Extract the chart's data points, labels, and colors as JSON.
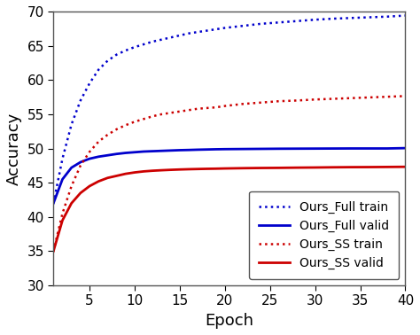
{
  "title": "",
  "xlabel": "Epoch",
  "ylabel": "Accuracy",
  "xlim": [
    1,
    40
  ],
  "ylim": [
    30,
    70
  ],
  "xticks": [
    5,
    10,
    15,
    20,
    25,
    30,
    35,
    40
  ],
  "yticks": [
    30,
    35,
    40,
    45,
    50,
    55,
    60,
    65,
    70
  ],
  "series": {
    "ours_full_train": {
      "color": "#0000cc",
      "linestyle": "dotted",
      "linewidth": 1.8,
      "label": "Ours_Full train",
      "x": [
        1,
        2,
        3,
        4,
        5,
        6,
        7,
        8,
        9,
        10,
        11,
        12,
        13,
        14,
        15,
        16,
        17,
        18,
        19,
        20,
        22,
        24,
        26,
        28,
        30,
        32,
        34,
        36,
        38,
        40
      ],
      "y": [
        42.0,
        48.5,
        53.5,
        57.0,
        59.5,
        61.5,
        62.8,
        63.7,
        64.3,
        64.8,
        65.2,
        65.6,
        65.9,
        66.2,
        66.5,
        66.8,
        67.0,
        67.2,
        67.4,
        67.6,
        67.9,
        68.2,
        68.4,
        68.6,
        68.8,
        68.95,
        69.05,
        69.15,
        69.25,
        69.4
      ]
    },
    "ours_full_valid": {
      "color": "#0000cc",
      "linestyle": "solid",
      "linewidth": 2.0,
      "label": "Ours_Full valid",
      "x": [
        1,
        2,
        3,
        4,
        5,
        6,
        7,
        8,
        9,
        10,
        11,
        12,
        13,
        14,
        15,
        16,
        17,
        18,
        19,
        20,
        22,
        24,
        26,
        28,
        30,
        32,
        34,
        36,
        38,
        40
      ],
      "y": [
        42.0,
        45.5,
        47.2,
        48.0,
        48.5,
        48.8,
        49.0,
        49.2,
        49.35,
        49.45,
        49.55,
        49.6,
        49.65,
        49.7,
        49.75,
        49.78,
        49.82,
        49.85,
        49.88,
        49.9,
        49.92,
        49.94,
        49.96,
        49.97,
        49.98,
        49.99,
        50.0,
        50.0,
        50.0,
        50.05
      ]
    },
    "ours_ss_train": {
      "color": "#cc0000",
      "linestyle": "dotted",
      "linewidth": 1.8,
      "label": "Ours_SS train",
      "x": [
        1,
        2,
        3,
        4,
        5,
        6,
        7,
        8,
        9,
        10,
        11,
        12,
        13,
        14,
        15,
        16,
        17,
        18,
        19,
        20,
        22,
        24,
        26,
        28,
        30,
        32,
        34,
        36,
        38,
        40
      ],
      "y": [
        35.0,
        40.5,
        44.5,
        47.5,
        49.5,
        51.0,
        52.0,
        52.8,
        53.4,
        53.9,
        54.3,
        54.7,
        55.0,
        55.2,
        55.4,
        55.6,
        55.8,
        55.9,
        56.0,
        56.2,
        56.5,
        56.7,
        56.9,
        57.0,
        57.15,
        57.25,
        57.35,
        57.45,
        57.55,
        57.65
      ]
    },
    "ours_ss_valid": {
      "color": "#cc0000",
      "linestyle": "solid",
      "linewidth": 2.0,
      "label": "Ours_SS valid",
      "x": [
        1,
        2,
        3,
        4,
        5,
        6,
        7,
        8,
        9,
        10,
        11,
        12,
        13,
        14,
        15,
        16,
        17,
        18,
        19,
        20,
        22,
        24,
        26,
        28,
        30,
        32,
        34,
        36,
        38,
        40
      ],
      "y": [
        35.0,
        39.5,
        42.0,
        43.5,
        44.5,
        45.2,
        45.7,
        46.0,
        46.3,
        46.5,
        46.65,
        46.75,
        46.82,
        46.88,
        46.93,
        46.97,
        47.0,
        47.03,
        47.05,
        47.08,
        47.12,
        47.15,
        47.17,
        47.2,
        47.22,
        47.25,
        47.27,
        47.28,
        47.3,
        47.32
      ]
    }
  },
  "legend_loc": "lower right",
  "legend_fontsize": 10,
  "axis_label_fontsize": 13,
  "tick_fontsize": 11,
  "background_color": "#ffffff",
  "figure_facecolor": "#ffffff"
}
